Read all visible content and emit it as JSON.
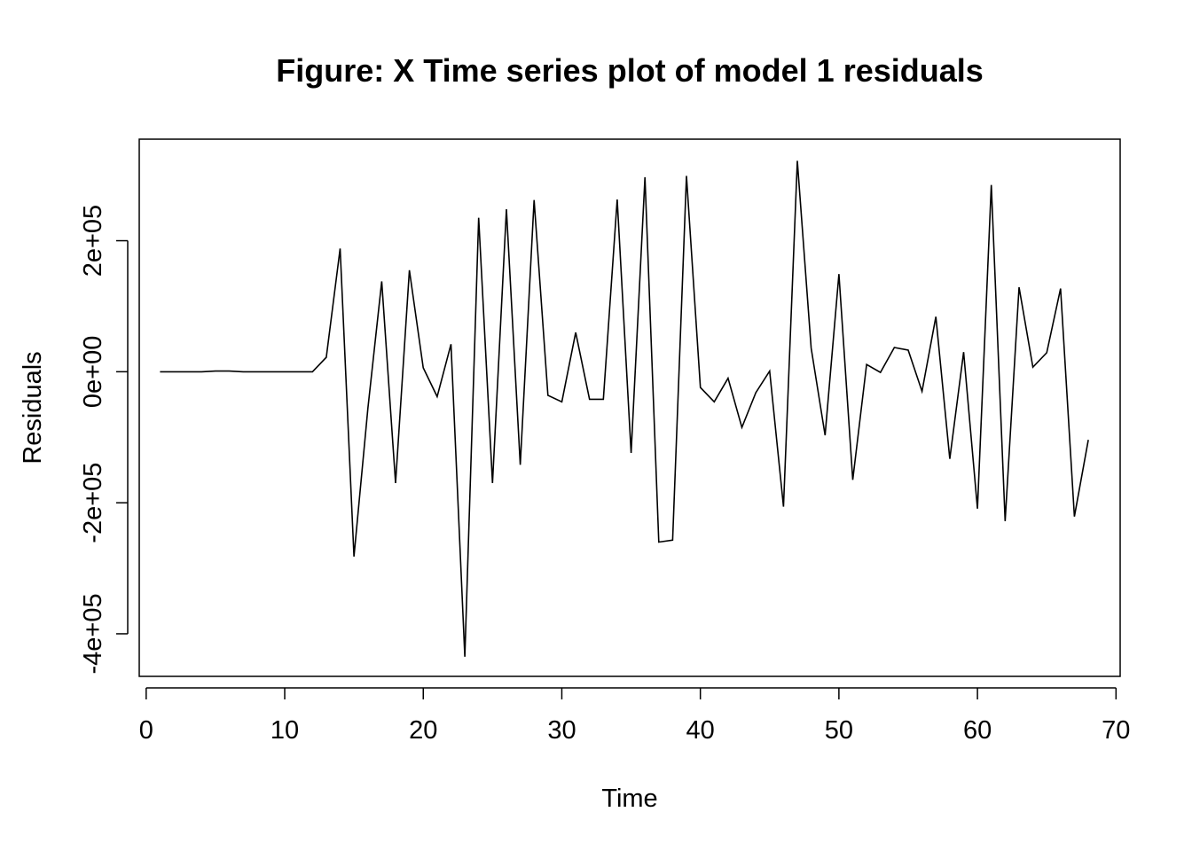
{
  "chart_data": {
    "type": "line",
    "title": "Figure:  X Time series plot of model 1 residuals",
    "xlabel": "Time",
    "ylabel": "Residuals",
    "xlim": [
      -0.5,
      70.3
    ],
    "ylim": [
      -465000,
      355000
    ],
    "xticks": [
      0,
      10,
      20,
      30,
      40,
      50,
      60,
      70
    ],
    "xtick_labels": [
      "0",
      "10",
      "20",
      "30",
      "40",
      "50",
      "60",
      "70"
    ],
    "yticks": [
      -400000,
      -200000,
      0,
      200000
    ],
    "ytick_labels": [
      "-4e+05",
      "-2e+05",
      "0e+00",
      "2e+05"
    ],
    "grid": false,
    "legend": "none",
    "series": [
      {
        "color": "#000000",
        "x": [
          1,
          2,
          3,
          4,
          5,
          6,
          7,
          8,
          9,
          10,
          11,
          12,
          13,
          14,
          15,
          16,
          17,
          18,
          19,
          20,
          21,
          22,
          23,
          24,
          25,
          26,
          27,
          28,
          29,
          30,
          31,
          32,
          33,
          34,
          35,
          36,
          37,
          38,
          39,
          40,
          41,
          42,
          43,
          44,
          45,
          46,
          47,
          48,
          49,
          50,
          51,
          52,
          53,
          54,
          55,
          56,
          57,
          58,
          59,
          60,
          61,
          62,
          63,
          64,
          65,
          66,
          67,
          68
        ],
        "y": [
          0,
          0,
          0,
          0,
          1000,
          1000,
          0,
          0,
          0,
          0,
          0,
          0,
          22000,
          188000,
          -282000,
          -56000,
          138000,
          -170000,
          155000,
          6000,
          -38000,
          42000,
          -435000,
          235000,
          -170000,
          248000,
          -142000,
          262000,
          -36000,
          -46000,
          60000,
          -42000,
          -42000,
          263000,
          -124000,
          297000,
          -260000,
          -257000,
          299000,
          -24000,
          -46000,
          -10000,
          -85000,
          -32000,
          1000,
          -206000,
          322000,
          36000,
          -97000,
          149000,
          -165000,
          11000,
          -1000,
          37000,
          33000,
          -30000,
          84000,
          -133000,
          30000,
          -209000,
          285000,
          -228000,
          129000,
          7000,
          29000,
          127000,
          -221000,
          -104000
        ]
      }
    ]
  }
}
